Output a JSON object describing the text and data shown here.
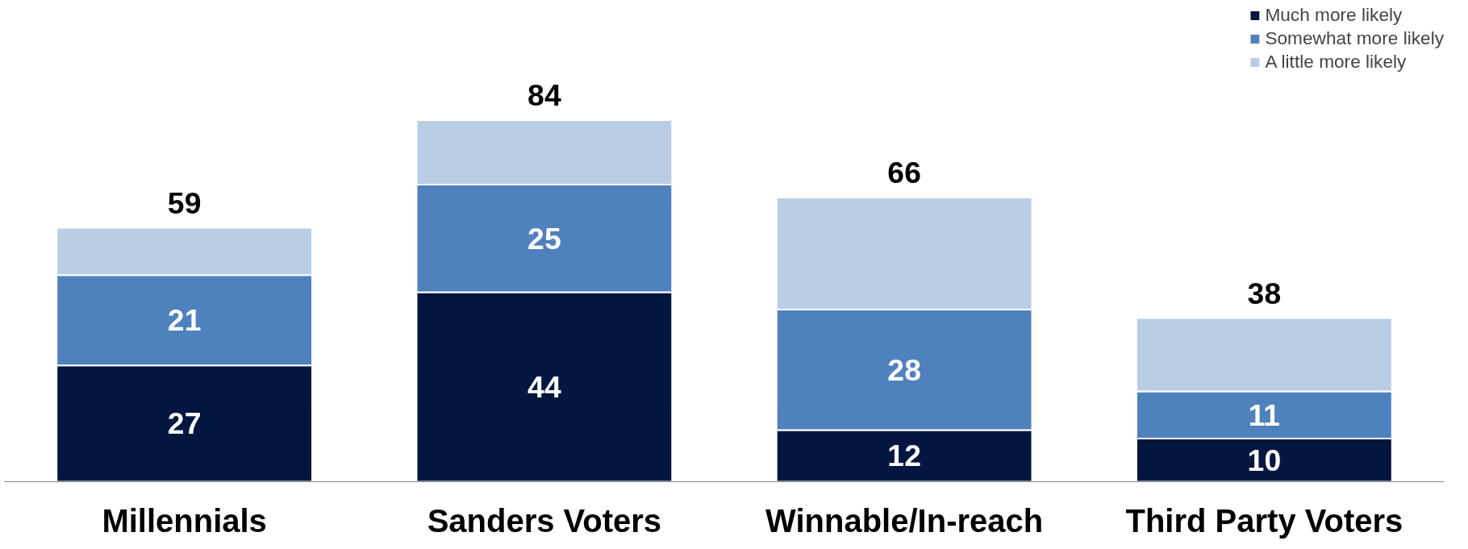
{
  "chart_data": {
    "type": "bar",
    "stacked": true,
    "categories": [
      "Millennials",
      "Sanders Voters",
      "Winnable/In-reach",
      "Third Party Voters"
    ],
    "series": [
      {
        "name": "Much more likely",
        "color": "#021640",
        "values": [
          27,
          44,
          12,
          10
        ],
        "value_labels": [
          "27",
          "44",
          "12",
          "10"
        ]
      },
      {
        "name": "Somewhat more likely",
        "color": "#4f81bd",
        "values": [
          21,
          25,
          28,
          11
        ],
        "value_labels": [
          "21",
          "25",
          "28",
          "11"
        ]
      },
      {
        "name": "A little more likely",
        "color": "#b9cde5",
        "values": [
          11,
          15,
          26,
          17
        ],
        "value_labels": [
          null,
          null,
          null,
          null
        ]
      }
    ],
    "totals": [
      "59",
      "84",
      "66",
      "38"
    ],
    "legend": "top right",
    "grid": false
  }
}
